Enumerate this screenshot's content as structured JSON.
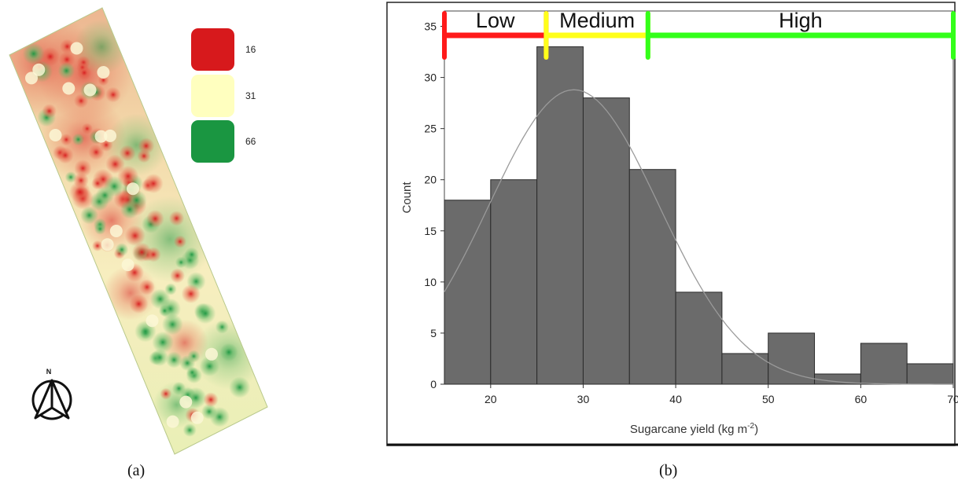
{
  "map": {
    "legend": [
      {
        "label": "16",
        "color": "#d7191c"
      },
      {
        "label": "31",
        "color": "#ffffbf"
      },
      {
        "label": "66",
        "color": "#1a9641"
      }
    ],
    "north_label": "N"
  },
  "captions": {
    "a": "(a)",
    "b": "(b)"
  },
  "chart_data": {
    "type": "bar",
    "bins": [
      {
        "x0": 15,
        "x1": 20,
        "count": 18
      },
      {
        "x0": 20,
        "x1": 25,
        "count": 20
      },
      {
        "x0": 25,
        "x1": 30,
        "count": 33
      },
      {
        "x0": 30,
        "x1": 35,
        "count": 28
      },
      {
        "x0": 35,
        "x1": 40,
        "count": 21
      },
      {
        "x0": 40,
        "x1": 45,
        "count": 9
      },
      {
        "x0": 45,
        "x1": 50,
        "count": 3
      },
      {
        "x0": 50,
        "x1": 55,
        "count": 5
      },
      {
        "x0": 55,
        "x1": 60,
        "count": 1
      },
      {
        "x0": 60,
        "x1": 65,
        "count": 4
      },
      {
        "x0": 65,
        "x1": 70,
        "count": 2
      }
    ],
    "xlabel": "Sugarcane yield (kg m",
    "xlabel_sup": "-2",
    "xlabel_end": ")",
    "ylabel": "Count",
    "xlim": [
      15,
      70
    ],
    "ylim": [
      0,
      36.5
    ],
    "xticks": [
      "20",
      "30",
      "40",
      "50",
      "60",
      "70"
    ],
    "yticks": [
      "0",
      "5",
      "10",
      "15",
      "20",
      "25",
      "30",
      "35"
    ],
    "fit_curve": {
      "type": "normal",
      "peak_x": 29,
      "peak_y": 28.8
    },
    "ranges": [
      {
        "label": "Low",
        "from": 15,
        "to": 26,
        "color": "#ff1a1a"
      },
      {
        "label": "Medium",
        "from": 26,
        "to": 37,
        "color": "#ffff1a"
      },
      {
        "label": "High",
        "from": 37,
        "to": 70,
        "color": "#33ff1a"
      }
    ]
  }
}
